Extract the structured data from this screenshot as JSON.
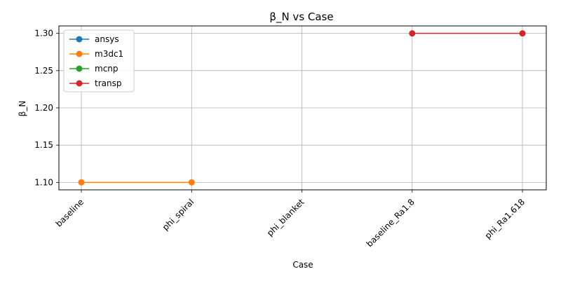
{
  "chart_data": {
    "type": "line",
    "title": "β_N vs Case",
    "xlabel": "Case",
    "ylabel": "β_N",
    "categories": [
      "baseline",
      "phi_spiral",
      "phi_blanket",
      "baseline_Ra1.8",
      "phi_Ra1.618"
    ],
    "ylim": [
      1.09,
      1.31
    ],
    "yticks": [
      1.1,
      1.15,
      1.2,
      1.25,
      1.3
    ],
    "ytick_labels": [
      "1.10",
      "1.15",
      "1.20",
      "1.25",
      "1.30"
    ],
    "grid": true,
    "legend_position": "top-left",
    "series": [
      {
        "name": "ansys",
        "color": "#1f77b4",
        "values": [
          null,
          null,
          null,
          null,
          null
        ]
      },
      {
        "name": "m3dc1",
        "color": "#ff7f0e",
        "values": [
          1.1,
          1.1,
          null,
          null,
          null
        ]
      },
      {
        "name": "mcnp",
        "color": "#2ca02c",
        "values": [
          null,
          null,
          null,
          null,
          null
        ]
      },
      {
        "name": "transp",
        "color": "#d62728",
        "values": [
          null,
          null,
          null,
          1.3,
          1.3
        ]
      }
    ]
  }
}
